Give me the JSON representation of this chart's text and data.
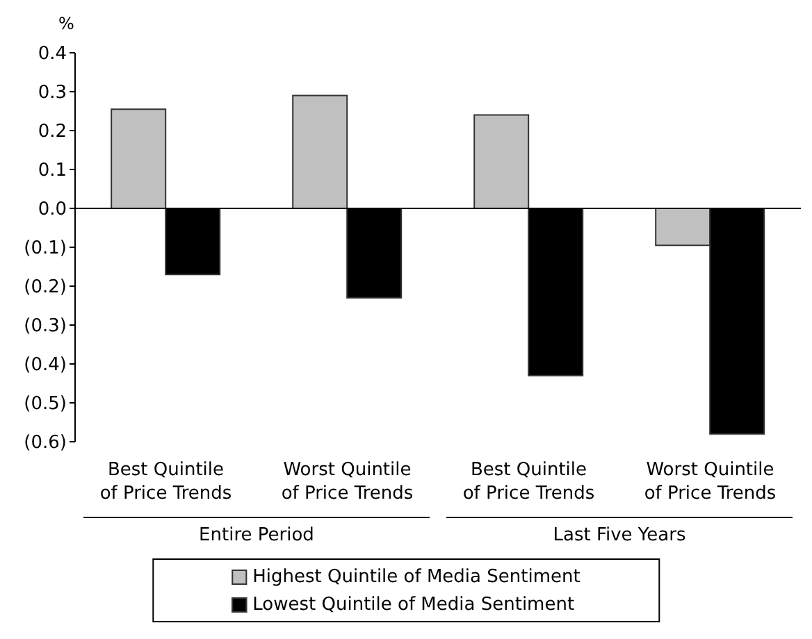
{
  "chart_data": {
    "type": "bar",
    "ylabel": "%",
    "categories": [
      "Best Quintile\nof Price Trends",
      "Worst Quintile\nof Price Trends",
      "Best Quintile\nof Price Trends",
      "Worst Quintile\nof Price Trends"
    ],
    "series": [
      {
        "name": "Highest Quintile of Media Sentiment",
        "color": "#c0c0c0",
        "values": [
          0.255,
          0.29,
          0.24,
          -0.095
        ]
      },
      {
        "name": "Lowest Quintile of Media Sentiment",
        "color": "#000000",
        "values": [
          -0.17,
          -0.23,
          -0.43,
          -0.58
        ]
      }
    ],
    "ylim": [
      -0.6,
      0.4
    ],
    "yticks": [
      {
        "value": -0.6,
        "label": "(0.6)"
      },
      {
        "value": -0.5,
        "label": "(0.5)"
      },
      {
        "value": -0.4,
        "label": "(0.4)"
      },
      {
        "value": -0.3,
        "label": "(0.3)"
      },
      {
        "value": -0.2,
        "label": "(0.2)"
      },
      {
        "value": -0.1,
        "label": "(0.1)"
      },
      {
        "value": 0,
        "label": "0.0"
      },
      {
        "value": 0.1,
        "label": "0.1"
      },
      {
        "value": 0.2,
        "label": "0.2"
      },
      {
        "value": 0.3,
        "label": "0.3"
      },
      {
        "value": 0.4,
        "label": "0.4"
      }
    ],
    "annotations": [
      "Entire Period",
      "Last Five Years"
    ],
    "legend": "bottom"
  }
}
